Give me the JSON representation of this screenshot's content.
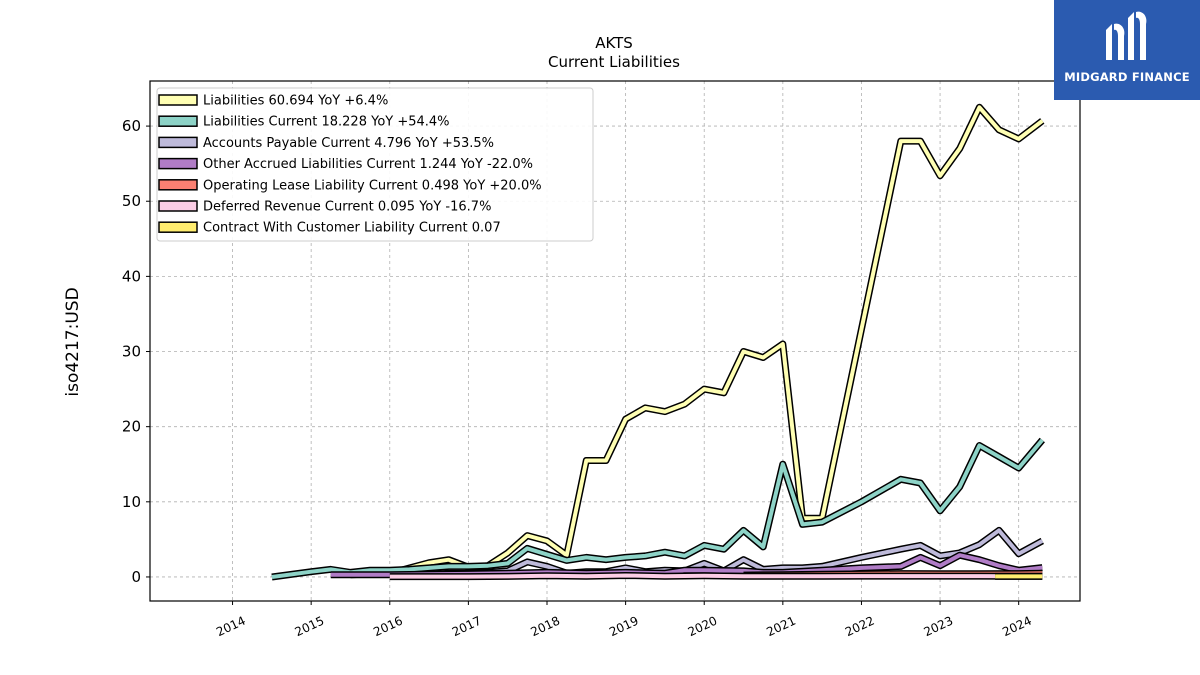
{
  "chart_data": {
    "type": "line",
    "title": "AKTS",
    "subtitle": "Current  Liabilities",
    "ylabel": "iso4217:USD",
    "xlabel": "",
    "ylim": [
      -3.2,
      66
    ],
    "xlim": [
      2012.95,
      2024.78
    ],
    "yticks": [
      0,
      10,
      20,
      30,
      40,
      50,
      60
    ],
    "xticks": [
      "2014",
      "2015",
      "2016",
      "2017",
      "2018",
      "2019",
      "2020",
      "2021",
      "2022",
      "2023",
      "2024"
    ],
    "grid": true,
    "legend_position": "upper-left",
    "series": [
      {
        "name": "Liabilities",
        "legend": "Liabilities  60.694 YoY +6.4%",
        "color": "#ffffb3",
        "x": [
          2015.5,
          2016.0,
          2016.5,
          2016.75,
          2017.0,
          2017.25,
          2017.5,
          2017.75,
          2018.0,
          2018.25,
          2018.5,
          2018.75,
          2019.0,
          2019.25,
          2019.5,
          2019.75,
          2020.0,
          2020.25,
          2020.5,
          2020.75,
          2021.0,
          2021.25,
          2021.5,
          2022.0,
          2022.5,
          2022.75,
          2023.0,
          2023.25,
          2023.5,
          2023.75,
          2024.0,
          2024.3
        ],
        "y": [
          0.3,
          0.5,
          1.9,
          2.3,
          1.3,
          1.5,
          3.2,
          5.5,
          4.8,
          2.9,
          15.5,
          15.5,
          21.0,
          22.5,
          22.0,
          23.0,
          25.0,
          24.5,
          30.0,
          29.2,
          31.0,
          7.8,
          7.8,
          33.0,
          58.0,
          58.0,
          53.4,
          57.0,
          62.5,
          59.5,
          58.3,
          60.694
        ]
      },
      {
        "name": "Liabilities Current",
        "legend": "Liabilities Current  18.228 YoY +54.4%",
        "color": "#8dd3c7",
        "x": [
          2014.5,
          2015.0,
          2015.25,
          2015.5,
          2015.75,
          2016.0,
          2016.25,
          2016.5,
          2016.75,
          2017.0,
          2017.25,
          2017.5,
          2017.75,
          2018.0,
          2018.25,
          2018.5,
          2018.75,
          2019.0,
          2019.25,
          2019.5,
          2019.75,
          2020.0,
          2020.25,
          2020.5,
          2020.75,
          2021.0,
          2021.25,
          2021.5,
          2022.0,
          2022.5,
          2022.75,
          2023.0,
          2023.25,
          2023.5,
          2023.75,
          2024.0,
          2024.3
        ],
        "y": [
          0.0,
          0.7,
          1.0,
          0.6,
          0.9,
          0.9,
          1.0,
          1.2,
          1.4,
          1.4,
          1.5,
          1.8,
          3.8,
          3.0,
          2.2,
          2.6,
          2.3,
          2.6,
          2.8,
          3.3,
          2.8,
          4.2,
          3.7,
          6.2,
          4.0,
          15.0,
          7.0,
          7.3,
          10.0,
          13.0,
          12.5,
          8.8,
          12.0,
          17.5,
          16.0,
          14.5,
          18.228
        ]
      },
      {
        "name": "Accounts Payable Current",
        "legend": "Accounts Payable Current  4.796 YoY +53.5%",
        "color": "#bebada",
        "x": [
          2016.5,
          2016.75,
          2017.0,
          2017.25,
          2017.5,
          2017.75,
          2018.0,
          2018.25,
          2018.5,
          2018.75,
          2019.0,
          2019.25,
          2019.5,
          2019.75,
          2020.0,
          2020.25,
          2020.5,
          2020.75,
          2021.0,
          2021.25,
          2021.5,
          2022.0,
          2022.5,
          2022.75,
          2023.0,
          2023.25,
          2023.5,
          2023.75,
          2024.0,
          2024.3
        ],
        "y": [
          0.3,
          0.5,
          0.5,
          0.6,
          0.8,
          2.0,
          1.4,
          0.5,
          0.7,
          0.7,
          1.2,
          0.7,
          0.9,
          0.8,
          1.8,
          0.8,
          2.3,
          1.0,
          1.2,
          1.2,
          1.4,
          2.6,
          3.7,
          4.2,
          2.8,
          3.2,
          4.3,
          6.2,
          3.1,
          4.796
        ]
      },
      {
        "name": "Other Accrued Liabilities Current",
        "legend": "Other Accrued Liabilities Current  1.244 YoY -22.0%",
        "color": "#b07cc6",
        "x": [
          2015.25,
          2016.0,
          2016.5,
          2017.0,
          2017.5,
          2018.0,
          2018.5,
          2019.0,
          2019.5,
          2019.75,
          2020.0,
          2020.5,
          2020.75,
          2021.0,
          2021.5,
          2022.0,
          2022.5,
          2022.75,
          2023.0,
          2023.25,
          2023.5,
          2023.75,
          2024.0,
          2024.3
        ],
        "y": [
          0.3,
          0.3,
          0.35,
          0.4,
          0.5,
          0.6,
          0.5,
          0.6,
          0.5,
          0.9,
          0.9,
          0.8,
          0.6,
          0.6,
          0.9,
          1.2,
          1.4,
          2.6,
          1.5,
          2.9,
          2.3,
          1.5,
          0.9,
          1.244
        ]
      },
      {
        "name": "Operating Lease Liability Current",
        "legend": "Operating Lease Liability Current  0.498 YoY +20.0%",
        "color": "#fb8072",
        "x": [
          2020.5,
          2021.0,
          2021.5,
          2022.0,
          2022.5,
          2023.0,
          2023.5,
          2024.0,
          2024.3
        ],
        "y": [
          0.25,
          0.3,
          0.35,
          0.4,
          0.45,
          0.42,
          0.42,
          0.45,
          0.498
        ]
      },
      {
        "name": "Deferred Revenue Current",
        "legend": "Deferred Revenue Current  0.095 YoY -16.7%",
        "color": "#fccde5",
        "x": [
          2016.0,
          2016.5,
          2017.0,
          2017.5,
          2018.0,
          2018.5,
          2019.0,
          2019.5,
          2020.0,
          2020.5,
          2021.0,
          2021.5,
          2022.0,
          2022.5,
          2023.0,
          2023.5,
          2024.0,
          2024.3
        ],
        "y": [
          0.05,
          0.05,
          0.05,
          0.08,
          0.15,
          0.1,
          0.2,
          0.1,
          0.15,
          0.1,
          0.1,
          0.1,
          0.12,
          0.12,
          0.11,
          0.11,
          0.1,
          0.095
        ]
      },
      {
        "name": "Contract With Customer Liability Current",
        "legend": "Contract With Customer Liability Current  0.07",
        "color": "#ffed6f",
        "x": [
          2023.7,
          2024.0,
          2024.3
        ],
        "y": [
          0.08,
          0.07,
          0.07
        ]
      }
    ]
  },
  "logo": {
    "name": "MIDGARD FINANCE",
    "bg_color": "#2b5bb0"
  }
}
